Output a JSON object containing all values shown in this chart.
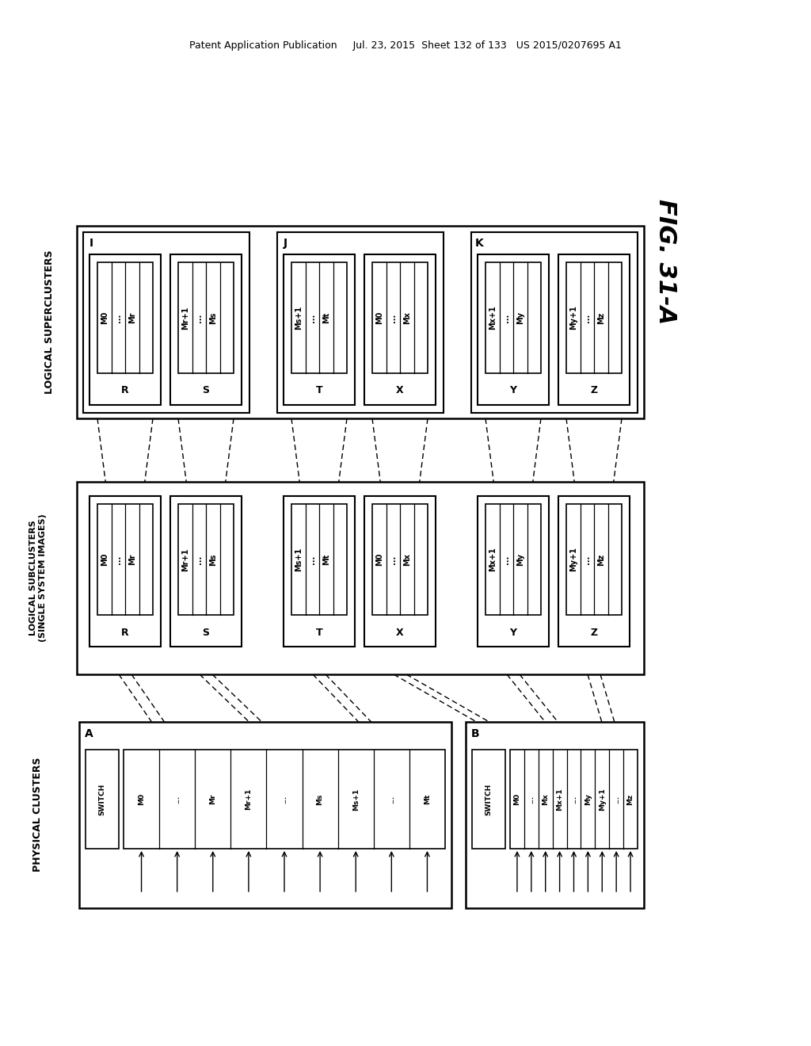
{
  "header": "Patent Application Publication     Jul. 23, 2015  Sheet 132 of 133   US 2015/0207695 A1",
  "fig_label": "FIG. 31-A",
  "layer_labels": {
    "superclusters": "LOGICAL SUPERCLUSTERS",
    "subclusters": "LOGICAL SUBCLUSTERS\n(SINGLE SYSTEM IMAGES)",
    "physical": "PHYSICAL CLUSTERS"
  },
  "groups": [
    {
      "label": "I",
      "nodes": [
        {
          "name": "R",
          "items": [
            "M0",
            "...",
            "Mr"
          ]
        },
        {
          "name": "S",
          "items": [
            "Mr+1",
            "...",
            "Ms"
          ]
        }
      ]
    },
    {
      "label": "J",
      "nodes": [
        {
          "name": "T",
          "items": [
            "Ms+1",
            "...",
            "Mt"
          ]
        },
        {
          "name": "X",
          "items": [
            "M0",
            "...",
            "Mx"
          ]
        }
      ]
    },
    {
      "label": "K",
      "nodes": [
        {
          "name": "Y",
          "items": [
            "Mx+1",
            "...",
            "My"
          ]
        },
        {
          "name": "Z",
          "items": [
            "My+1",
            "...",
            "Mz"
          ]
        }
      ]
    }
  ],
  "physical": [
    {
      "label": "A",
      "items": [
        "M0",
        "...",
        "Mr",
        "Mr+1",
        "...",
        "Ms",
        "Ms+1",
        "...",
        "Mt"
      ]
    },
    {
      "label": "B",
      "items": [
        "M0",
        "...",
        "Mx",
        "Mx+1",
        "...",
        "My",
        "My+1",
        "...",
        "Mz"
      ]
    }
  ]
}
